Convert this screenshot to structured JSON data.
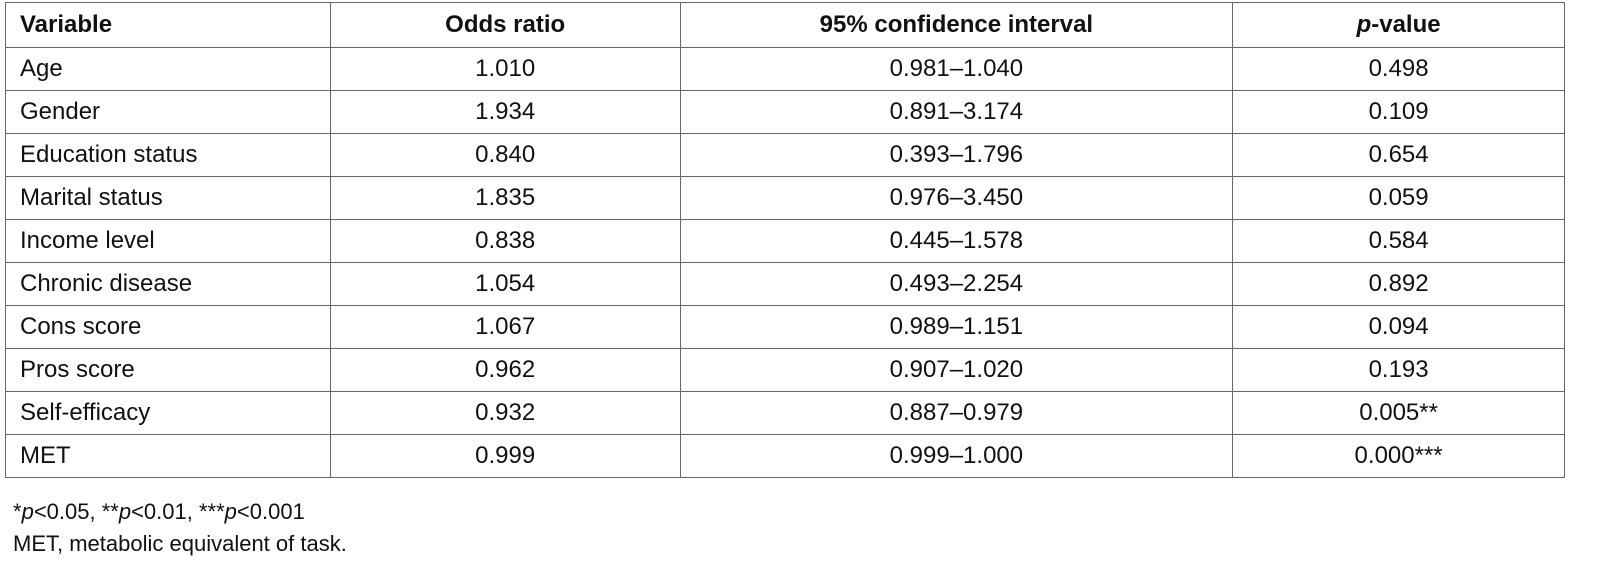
{
  "table": {
    "header": [
      "Variable",
      "Odds ratio",
      "95% confidence interval",
      [
        {
          "text": "p",
          "italic": true
        },
        {
          "text": "-value"
        }
      ]
    ],
    "rows": [
      [
        "Age",
        "1.010",
        "0.981–1.040",
        "0.498"
      ],
      [
        "Gender",
        "1.934",
        "0.891–3.174",
        "0.109"
      ],
      [
        "Education status",
        "0.840",
        "0.393–1.796",
        "0.654"
      ],
      [
        "Marital status",
        "1.835",
        "0.976–3.450",
        "0.059"
      ],
      [
        "Income level",
        "0.838",
        "0.445–1.578",
        "0.584"
      ],
      [
        "Chronic disease",
        "1.054",
        "0.493–2.254",
        "0.892"
      ],
      [
        "Cons score",
        "1.067",
        "0.989–1.151",
        "0.094"
      ],
      [
        "Pros score",
        "0.962",
        "0.907–1.020",
        "0.193"
      ],
      [
        "Self-efficacy",
        "0.932",
        "0.887–0.979",
        "0.005**"
      ],
      [
        "MET",
        "0.999",
        "0.999–1.000",
        "0.000***"
      ]
    ]
  },
  "notes": [
    [
      {
        "text": "*"
      },
      {
        "text": "p",
        "italic": true
      },
      {
        "text": "<0.05, **"
      },
      {
        "text": "p",
        "italic": true
      },
      {
        "text": "<0.01, ***"
      },
      {
        "text": "p",
        "italic": true
      },
      {
        "text": "<0.001"
      }
    ],
    [
      {
        "text": "MET, metabolic equivalent of task."
      }
    ]
  ]
}
